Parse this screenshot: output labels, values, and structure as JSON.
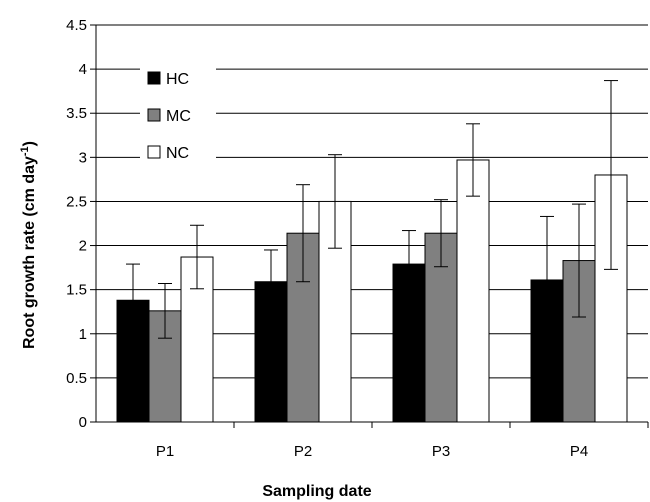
{
  "chart_data": {
    "type": "bar",
    "xlabel": "Sampling date",
    "ylabel_main": "Root growth rate (cm day",
    "ylabel_sup": "-1",
    "ylabel_close": ")",
    "categories": [
      "P1",
      "P2",
      "P3",
      "P4"
    ],
    "series": [
      {
        "name": "HC",
        "color": "#000000",
        "values": [
          1.38,
          1.59,
          1.79,
          1.61
        ],
        "error": [
          0.41,
          0.36,
          0.38,
          0.72
        ]
      },
      {
        "name": "MC",
        "color": "#808080",
        "values": [
          1.26,
          2.14,
          2.14,
          1.83
        ],
        "error": [
          0.31,
          0.55,
          0.38,
          0.64
        ]
      },
      {
        "name": "NC",
        "color": "#ffffff",
        "values": [
          1.87,
          2.5,
          2.97,
          2.8
        ],
        "error": [
          0.36,
          0.53,
          0.41,
          1.07
        ]
      }
    ],
    "ylim": [
      0,
      4.5
    ],
    "yticks": [
      "0",
      "0.5",
      "1",
      "1.5",
      "2",
      "2.5",
      "3",
      "3.5",
      "4",
      "4.5"
    ],
    "grid": true,
    "legend_position": "top-left"
  }
}
